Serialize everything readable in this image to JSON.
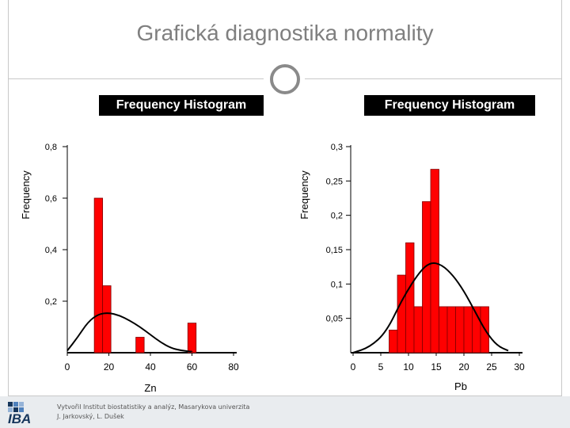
{
  "slide": {
    "title": "Grafická diagnostika normality"
  },
  "footer": {
    "logo_text": "IBA",
    "credit_line1": "Vytvořil Institut biostatistiky a analýz, Masarykova univerzita",
    "credit_line2": "J. Jarkovský, L. Dušek"
  },
  "colors": {
    "bar_fill": "#ff0000",
    "bar_stroke": "#800000",
    "header_bg": "#000000",
    "title": "#7f7f7f",
    "footer_bg": "#e9ecef"
  },
  "chart_data": [
    {
      "type": "bar",
      "title": "Frequency Histogram",
      "xlabel": "Zn",
      "ylabel": "Frequency",
      "xlim": [
        0,
        80
      ],
      "ylim": [
        0.0,
        0.8
      ],
      "x_ticks": [
        "0",
        "20",
        "40",
        "60",
        "80"
      ],
      "y_ticks": [
        "0,2",
        "0,4",
        "0,6",
        "0,8"
      ],
      "bins": [
        {
          "x0": 13,
          "x1": 17,
          "value": 0.6
        },
        {
          "x0": 17,
          "x1": 21,
          "value": 0.26
        },
        {
          "x0": 33,
          "x1": 37,
          "value": 0.06
        },
        {
          "x0": 58,
          "x1": 62,
          "value": 0.115
        }
      ],
      "density_curve": [
        [
          0,
          0.008
        ],
        [
          5,
          0.06
        ],
        [
          10,
          0.12
        ],
        [
          15,
          0.15
        ],
        [
          20,
          0.155
        ],
        [
          25,
          0.145
        ],
        [
          30,
          0.125
        ],
        [
          35,
          0.1
        ],
        [
          40,
          0.07
        ],
        [
          45,
          0.04
        ],
        [
          50,
          0.018
        ],
        [
          55,
          0.008
        ],
        [
          60,
          0.004
        ]
      ],
      "grid": false
    },
    {
      "type": "bar",
      "title": "Frequency Histogram",
      "xlabel": "Pb",
      "ylabel": "Frequency",
      "xlim": [
        0,
        30
      ],
      "ylim": [
        0.0,
        0.3
      ],
      "x_ticks": [
        "0",
        "5",
        "10",
        "15",
        "20",
        "25",
        "30"
      ],
      "y_ticks": [
        "0,05",
        "0,1",
        "0,15",
        "0,2",
        "0,25",
        "0,3"
      ],
      "bins": [
        {
          "x0": 6.5,
          "x1": 8,
          "value": 0.033
        },
        {
          "x0": 8,
          "x1": 9.5,
          "value": 0.113
        },
        {
          "x0": 9.5,
          "x1": 11,
          "value": 0.16
        },
        {
          "x0": 11,
          "x1": 12.5,
          "value": 0.067
        },
        {
          "x0": 12.5,
          "x1": 14,
          "value": 0.22
        },
        {
          "x0": 14,
          "x1": 15.5,
          "value": 0.267
        },
        {
          "x0": 15.5,
          "x1": 17,
          "value": 0.067
        },
        {
          "x0": 17,
          "x1": 18.5,
          "value": 0.067
        },
        {
          "x0": 18.5,
          "x1": 20,
          "value": 0.067
        },
        {
          "x0": 20,
          "x1": 21.5,
          "value": 0.067
        },
        {
          "x0": 21.5,
          "x1": 23,
          "value": 0.067
        },
        {
          "x0": 23,
          "x1": 24.5,
          "value": 0.067
        }
      ],
      "density_curve": [
        [
          0,
          0.0
        ],
        [
          3,
          0.008
        ],
        [
          6,
          0.03
        ],
        [
          9,
          0.08
        ],
        [
          12,
          0.118
        ],
        [
          14,
          0.132
        ],
        [
          16,
          0.128
        ],
        [
          18,
          0.113
        ],
        [
          20,
          0.09
        ],
        [
          22,
          0.06
        ],
        [
          24,
          0.03
        ],
        [
          26,
          0.01
        ],
        [
          28,
          0.003
        ]
      ],
      "grid": false
    }
  ]
}
